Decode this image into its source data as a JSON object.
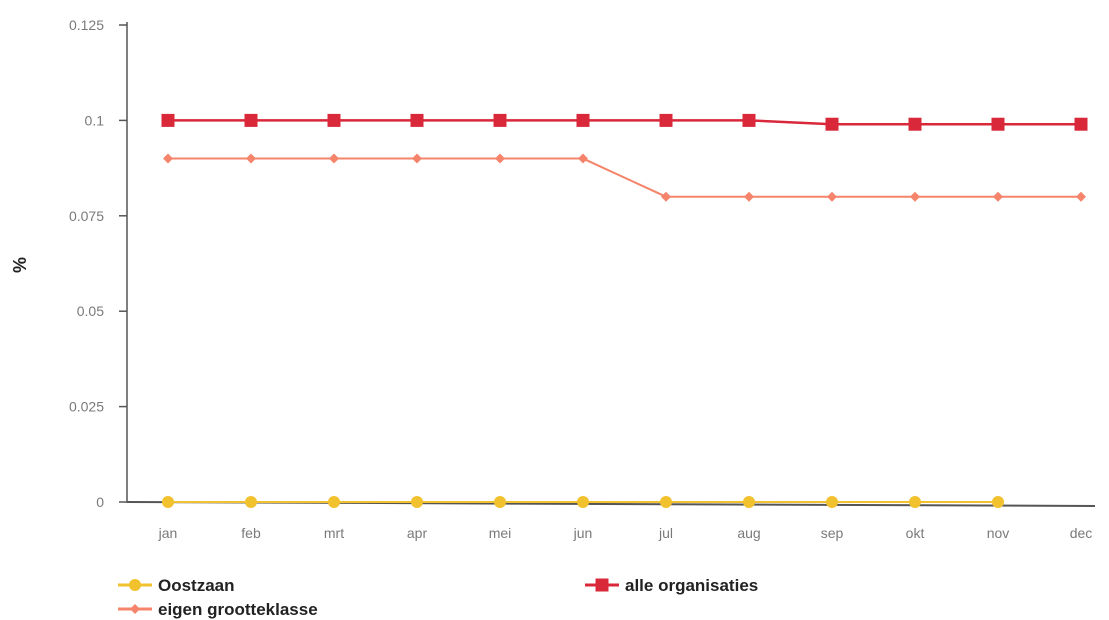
{
  "chart_data": {
    "type": "line",
    "title": "",
    "xlabel": "",
    "ylabel": "%",
    "ylim": [
      0,
      0.125
    ],
    "yticks": [
      "0.125",
      "0.1",
      "0.075",
      "0.05",
      "0.025",
      "0"
    ],
    "categories": [
      "jan",
      "feb",
      "mrt",
      "apr",
      "mei",
      "jun",
      "jul",
      "aug",
      "sep",
      "okt",
      "nov",
      "dec"
    ],
    "legend_position": "bottom",
    "series": [
      {
        "name": "Oostzaan",
        "color": "#f2c12e",
        "marker": "circle",
        "values": [
          0,
          0,
          0,
          0,
          0,
          0,
          0,
          0,
          0,
          0,
          0,
          null
        ]
      },
      {
        "name": "eigen grootteklasse",
        "color": "#f5846a",
        "marker": "diamond",
        "values": [
          0.09,
          0.09,
          0.09,
          0.09,
          0.09,
          0.09,
          0.08,
          0.08,
          0.08,
          0.08,
          0.08,
          0.08
        ]
      },
      {
        "name": "alle organisaties",
        "color": "#d9283a",
        "marker": "square",
        "values": [
          0.1,
          0.1,
          0.1,
          0.1,
          0.1,
          0.1,
          0.1,
          0.1,
          0.099,
          0.099,
          0.099,
          0.099
        ]
      }
    ]
  }
}
